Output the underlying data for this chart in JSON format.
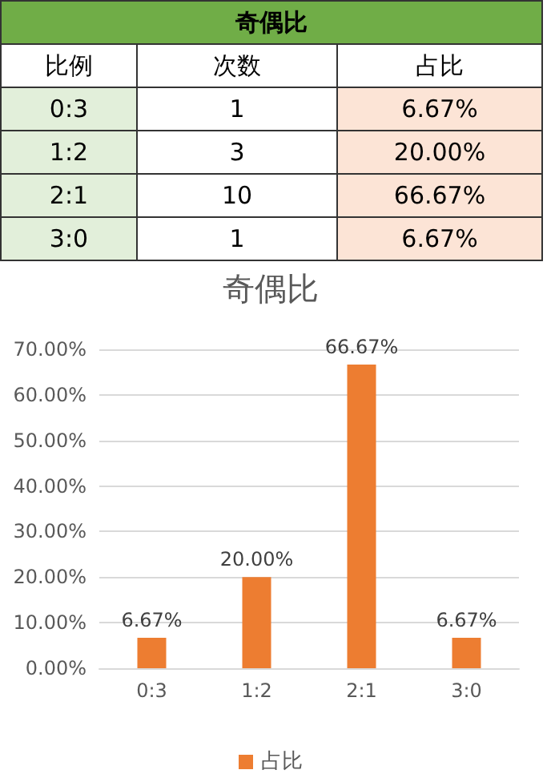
{
  "chart_data": [
    {
      "type": "other",
      "title": "奇偶比",
      "xlabel": "比例",
      "categories": [
        "0:3",
        "1:2",
        "2:1",
        "3:0"
      ],
      "series": [
        {
          "name": "次数",
          "values": [
            1,
            3,
            10,
            1
          ]
        },
        {
          "name": "占比",
          "color": "#fce4d6",
          "values": [
            6.67,
            20,
            66.67,
            6.67
          ],
          "value_labels": [
            "6.67%",
            "20.00%",
            "66.67%",
            "6.67%"
          ]
        }
      ],
      "data_labels": true
    },
    {
      "type": "bar",
      "title": "奇偶比",
      "categories": [
        "0:3",
        "1:2",
        "2:1",
        "3:0"
      ],
      "series": [
        {
          "name": "占比",
          "color": "#ed7d31",
          "values": [
            6.67,
            20,
            66.67,
            6.67
          ],
          "value_labels": [
            "6.67%",
            "20.00%",
            "66.67%",
            "6.67%"
          ]
        }
      ],
      "ylim": [
        0,
        70
      ],
      "yticks": [
        {
          "value": 0,
          "label": "0.00%"
        },
        {
          "value": 10,
          "label": "10.00%"
        },
        {
          "value": 20,
          "label": "20.00%"
        },
        {
          "value": 30,
          "label": "30.00%"
        },
        {
          "value": 40,
          "label": "40.00%"
        },
        {
          "value": 50,
          "label": "50.00%"
        },
        {
          "value": 60,
          "label": "60.00%"
        },
        {
          "value": 70,
          "label": "70.00%"
        }
      ],
      "grid": "y",
      "legend": "bottom"
    }
  ]
}
